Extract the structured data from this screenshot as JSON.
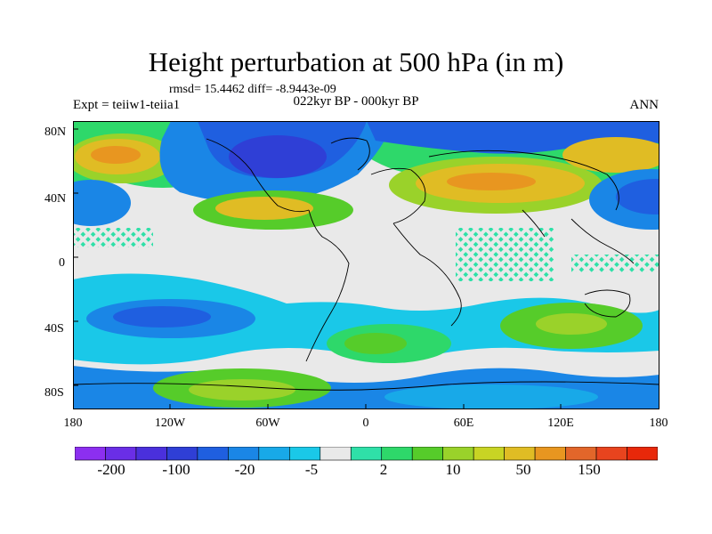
{
  "title": "Height perturbation at 500 hPa (in m)",
  "stats_text": "rmsd= 15.4462 diff= -8.9443e-09",
  "left_label": "Expt = teiiw1-teiia1",
  "center_label": "022kyr BP - 000kyr BP",
  "right_label": "ANN",
  "lat_labels": [
    "80N",
    "40N",
    "0",
    "40S",
    "80S"
  ],
  "lon_labels": [
    "180",
    "120W",
    "60W",
    "0",
    "60E",
    "120E",
    "180"
  ],
  "colorbar": {
    "colors": [
      "#8c2ff0",
      "#6a2ee6",
      "#4a30dc",
      "#2f3fd6",
      "#1f5fe0",
      "#1a86e6",
      "#18a9e8",
      "#1ac8e8",
      "#e9e9e9",
      "#2fe0a8",
      "#2ed86a",
      "#56cc2a",
      "#9ad22a",
      "#c8d424",
      "#e0bc24",
      "#e89620",
      "#e2662a",
      "#e8441e",
      "#e8280a"
    ],
    "tick_labels": [
      "-200",
      "-100",
      "-20",
      "-5",
      "2",
      "10",
      "50",
      "150"
    ]
  }
}
